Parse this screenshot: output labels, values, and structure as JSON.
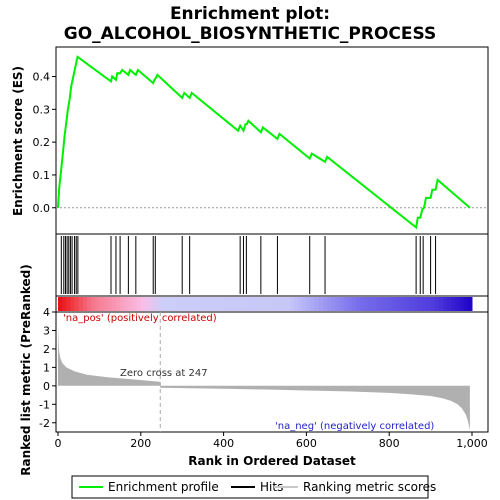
{
  "title_line1": "Enrichment plot:",
  "title_line2": "GO_ALCOHOL_BIOSYNTHETIC_PROCESS",
  "colors": {
    "es_line": "#00ee00",
    "hit": "#000000",
    "metric_fill": "#b0b0b0",
    "pos_label": "#cc0000",
    "neg_label": "#2222cc",
    "zero_line": "#aaaaaa"
  },
  "chart_data": [
    {
      "type": "line",
      "name": "enrichment-profile",
      "ylabel": "Enrichment score (ES)",
      "xlim": [
        0,
        1000
      ],
      "ylim": [
        -0.08,
        0.49
      ],
      "yticks": [
        0.0,
        0.1,
        0.2,
        0.3,
        0.4
      ],
      "ytick_labels": [
        "0.0",
        "0.1",
        "0.2",
        "0.3",
        "0.4"
      ],
      "grid": false,
      "x": [
        0,
        3,
        8,
        12,
        16,
        20,
        24,
        28,
        32,
        37,
        42,
        47,
        128,
        131,
        140,
        143,
        150,
        155,
        170,
        174,
        188,
        193,
        230,
        233,
        236,
        240,
        300,
        305,
        318,
        323,
        435,
        440,
        448,
        453,
        456,
        460,
        490,
        495,
        530,
        535,
        608,
        613,
        645,
        650,
        865,
        869,
        875,
        880,
        884,
        889,
        900,
        904,
        912,
        917,
        995
      ],
      "y": [
        0.0,
        0.06,
        0.12,
        0.17,
        0.22,
        0.26,
        0.3,
        0.33,
        0.37,
        0.4,
        0.43,
        0.46,
        0.385,
        0.4,
        0.39,
        0.41,
        0.41,
        0.42,
        0.405,
        0.42,
        0.405,
        0.42,
        0.38,
        0.39,
        0.395,
        0.405,
        0.335,
        0.35,
        0.335,
        0.35,
        0.235,
        0.25,
        0.235,
        0.255,
        0.255,
        0.265,
        0.23,
        0.245,
        0.21,
        0.225,
        0.15,
        0.165,
        0.14,
        0.155,
        -0.06,
        -0.03,
        -0.03,
        -0.005,
        0.0,
        0.03,
        0.03,
        0.055,
        0.055,
        0.085,
        0.0
      ]
    },
    {
      "type": "hits",
      "name": "hits",
      "positions": [
        8,
        14,
        18,
        22,
        26,
        30,
        34,
        40,
        44,
        48,
        128,
        140,
        150,
        170,
        188,
        230,
        235,
        300,
        318,
        440,
        448,
        455,
        490,
        530,
        608,
        645,
        865,
        875,
        882,
        900,
        912
      ]
    },
    {
      "type": "area",
      "name": "ranked-metric",
      "ylabel": "Ranked list metric (PreRanked)",
      "xlabel": "Rank in Ordered Dataset",
      "xlim": [
        0,
        1000
      ],
      "ylim": [
        -2.5,
        4.0
      ],
      "yticks": [
        -2,
        -1,
        0,
        1,
        2,
        3,
        4
      ],
      "ytick_labels": [
        "-2",
        "-1",
        "0",
        "1",
        "2",
        "3",
        "4"
      ],
      "xticks": [
        0,
        200,
        400,
        600,
        800,
        1000
      ],
      "xtick_labels": [
        "0",
        "200",
        "400",
        "600",
        "800",
        "1,000"
      ],
      "x": [
        0,
        2,
        5,
        10,
        20,
        40,
        70,
        120,
        180,
        246,
        247,
        300,
        400,
        500,
        600,
        700,
        800,
        850,
        900,
        930,
        950,
        965,
        975,
        985,
        990,
        995
      ],
      "y": [
        3.2,
        2.0,
        1.55,
        1.25,
        1.0,
        0.78,
        0.6,
        0.47,
        0.35,
        0.22,
        -0.1,
        -0.12,
        -0.16,
        -0.2,
        -0.25,
        -0.3,
        -0.38,
        -0.45,
        -0.55,
        -0.68,
        -0.82,
        -1.0,
        -1.2,
        -1.55,
        -1.9,
        -2.4
      ],
      "zero_cross": 247,
      "zero_cross_label": "Zero cross at 247",
      "pos_label": "'na_pos' (positively correlated)",
      "neg_label": "'na_neg' (negatively correlated)"
    }
  ],
  "legend": [
    {
      "label": "Enrichment profile",
      "kind": "line",
      "color": "#00ee00"
    },
    {
      "label": "Hits",
      "kind": "line",
      "color": "#000000"
    },
    {
      "label": "Ranking metric scores",
      "kind": "line",
      "color": "#c8c8c8"
    }
  ]
}
